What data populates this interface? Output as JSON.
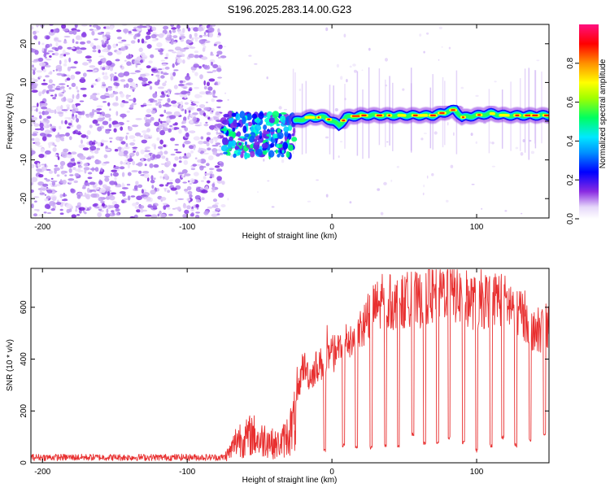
{
  "title": "S196.2025.283.14.00.G23",
  "chart_data": [
    {
      "type": "heatmap",
      "title": "S196.2025.283.14.00.G23",
      "xlabel": "Height of straight line (km)",
      "ylabel": "Frequency (Hz)",
      "xlim": [
        -208,
        150
      ],
      "ylim": [
        -25,
        25
      ],
      "xticks": [
        -200,
        -100,
        0,
        100
      ],
      "yticks": [
        -20,
        -10,
        0,
        10,
        20
      ],
      "colorbar": {
        "label": "Normalized spectral amplitude",
        "range": [
          0.0,
          1.0
        ],
        "ticks": [
          0.0,
          0.2,
          0.4,
          0.6,
          0.8
        ],
        "colors": [
          "#e0d0f8",
          "#8a2be2",
          "#0000ff",
          "#00e0ff",
          "#00ff40",
          "#ffff00",
          "#ff8000",
          "#ff0000",
          "#ff0080"
        ]
      },
      "regions": [
        {
          "name": "noise",
          "x_range": [
            -208,
            -75
          ],
          "freq_range": [
            -25,
            25
          ],
          "amplitude": 0.15
        },
        {
          "name": "transition",
          "x_range": [
            -75,
            -25
          ],
          "freq_range": [
            -9,
            2
          ],
          "amplitude": 0.35
        },
        {
          "name": "signal",
          "x_range": [
            -25,
            150
          ],
          "freq_center": 1.5,
          "amplitude": 0.9
        }
      ],
      "signal_track": {
        "x": [
          -25,
          -15,
          -5,
          5,
          10,
          20,
          30,
          40,
          50,
          60,
          70,
          80,
          85,
          90,
          100,
          110,
          120,
          130,
          140,
          150
        ],
        "freq": [
          0,
          1,
          1,
          -1,
          1,
          1.5,
          1.5,
          1.5,
          1.5,
          1.5,
          1.5,
          2.5,
          3,
          1,
          1.5,
          2,
          1.5,
          1.5,
          1.5,
          1.5
        ]
      }
    },
    {
      "type": "line",
      "xlabel": "Height of straight line (km)",
      "ylabel": "SNR (10 * v/v)",
      "xlim": [
        -208,
        150
      ],
      "ylim": [
        0,
        750
      ],
      "xticks": [
        -200,
        -100,
        0,
        100
      ],
      "yticks": [
        0,
        200,
        400,
        600
      ],
      "color": "#e83030",
      "series": [
        {
          "name": "SNR",
          "x": [
            -208,
            -180,
            -150,
            -120,
            -90,
            -75,
            -70,
            -65,
            -60,
            -55,
            -50,
            -45,
            -40,
            -35,
            -30,
            -25,
            -20,
            -15,
            -10,
            -5,
            0,
            5,
            10,
            15,
            20,
            25,
            30,
            35,
            40,
            45,
            50,
            55,
            60,
            65,
            70,
            75,
            80,
            85,
            90,
            95,
            100,
            105,
            110,
            115,
            120,
            125,
            130,
            135,
            140,
            145,
            150
          ],
          "y": [
            20,
            20,
            20,
            20,
            20,
            25,
            60,
            130,
            120,
            150,
            110,
            130,
            90,
            100,
            150,
            220,
            380,
            330,
            380,
            380,
            420,
            430,
            470,
            480,
            520,
            560,
            600,
            610,
            620,
            610,
            620,
            640,
            620,
            650,
            640,
            660,
            670,
            650,
            640,
            630,
            610,
            620,
            630,
            640,
            620,
            600,
            580,
            560,
            500,
            520,
            540
          ],
          "dropouts": [
            {
              "x": -5,
              "min": 40
            },
            {
              "x": 8,
              "min": 60
            },
            {
              "x": 17,
              "min": 50
            },
            {
              "x": 27,
              "min": 50
            },
            {
              "x": 37,
              "min": 60
            },
            {
              "x": 46,
              "min": 60
            },
            {
              "x": 56,
              "min": 100
            },
            {
              "x": 64,
              "min": 70
            },
            {
              "x": 73,
              "min": 70
            },
            {
              "x": 81,
              "min": 90
            },
            {
              "x": 91,
              "min": 70
            },
            {
              "x": 100,
              "min": 40
            },
            {
              "x": 110,
              "min": 60
            },
            {
              "x": 118,
              "min": 90
            },
            {
              "x": 127,
              "min": 60
            },
            {
              "x": 137,
              "min": 80
            },
            {
              "x": 147,
              "min": 100
            }
          ]
        }
      ]
    }
  ]
}
